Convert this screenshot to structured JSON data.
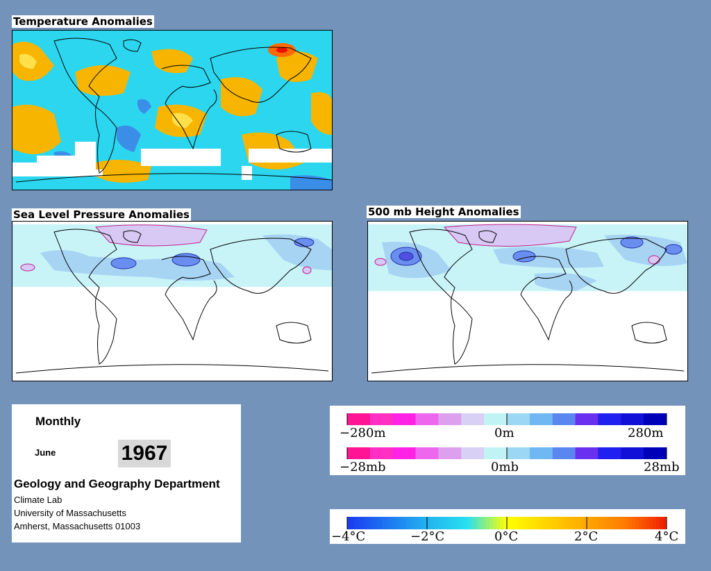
{
  "panels": {
    "temperature": {
      "title": "Temperature Anomalies"
    },
    "pressure": {
      "title": "Sea Level Pressure Anomalies"
    },
    "height": {
      "title": "500 mb Height Anomalies"
    }
  },
  "info": {
    "period": "Monthly",
    "month": "June",
    "year": "1967",
    "department": "Geology and Geography Department",
    "lab": "Climate Lab",
    "university": "University of Massachusetts",
    "location": "Amherst, Massachusetts 01003"
  },
  "legends": {
    "height": {
      "min": "−280m",
      "mid": "0m",
      "max": "280m"
    },
    "pressure": {
      "min": "−28mb",
      "mid": "0mb",
      "max": "28mb"
    },
    "temperature": {
      "t0": "−4°C",
      "t1": "−2°C",
      "t2": "0°C",
      "t3": "2°C",
      "t4": "4°C"
    }
  },
  "colors": {
    "background": "#7393bb",
    "anomaly_scale": [
      "#ff1493",
      "#ff2fc3",
      "#ff22e6",
      "#ee66ee",
      "#dda0ee",
      "#d8d0f5",
      "#c0f4f4",
      "#9cd8f4",
      "#70b8f4",
      "#5a86f0",
      "#6a30f0",
      "#2020f0",
      "#1010d8",
      "#0000b8"
    ],
    "temp_scale": [
      "#1a3cf0",
      "#1e78f0",
      "#22b4f0",
      "#28e0f0",
      "#ffff00",
      "#ffd400",
      "#ffa800",
      "#ff7a00",
      "#f02000"
    ]
  }
}
